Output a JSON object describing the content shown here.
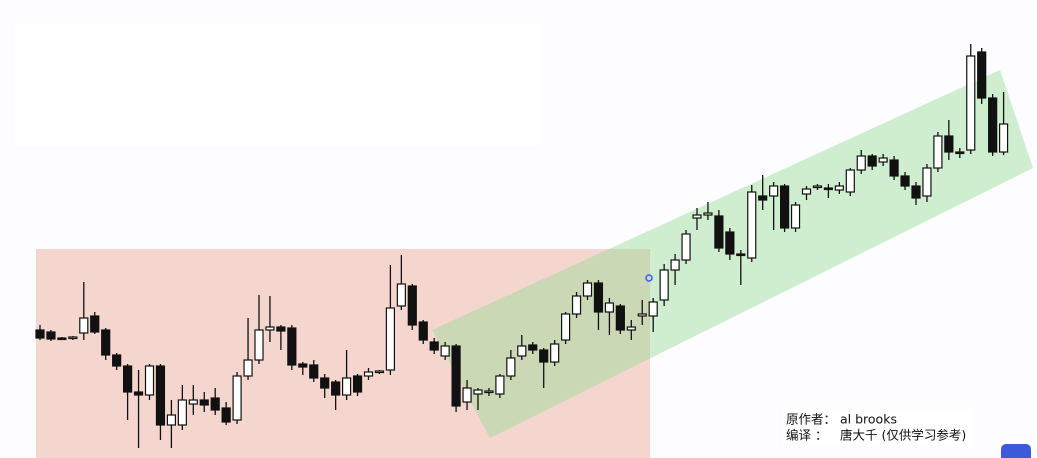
{
  "chart_data": {
    "type": "candlestick",
    "open": [
      130,
      128,
      122,
      122,
      127,
      144,
      130,
      105,
      94,
      68,
      65,
      94,
      35,
      35,
      56,
      60,
      62,
      52,
      40,
      84,
      100,
      130,
      133,
      132,
      96,
      95,
      82,
      78,
      65,
      84,
      84,
      88,
      90,
      154,
      174,
      138,
      118,
      104,
      114,
      58,
      66,
      68,
      66,
      84,
      104,
      115,
      110,
      98,
      120,
      146,
      164,
      177,
      148,
      154,
      130,
      144,
      144,
      160,
      190,
      200,
      242,
      245,
      244,
      228,
      206,
      202,
      264,
      264,
      274,
      232,
      266,
      273,
      272,
      270,
      268,
      290,
      304,
      298,
      300,
      284,
      274,
      264,
      292,
      324,
      308,
      310,
      408,
      362,
      308
    ],
    "high": [
      135,
      130,
      123,
      124,
      178,
      148,
      132,
      107,
      96,
      90,
      96,
      96,
      60,
      75,
      75,
      68,
      72,
      58,
      88,
      142,
      165,
      164,
      135,
      135,
      98,
      100,
      86,
      80,
      110,
      86,
      92,
      90,
      195,
      205,
      176,
      140,
      122,
      118,
      116,
      80,
      72,
      72,
      86,
      110,
      125,
      118,
      112,
      120,
      148,
      168,
      180,
      180,
      162,
      156,
      140,
      160,
      162,
      196,
      206,
      230,
      252,
      258,
      250,
      232,
      210,
      275,
      285,
      278,
      276,
      258,
      274,
      276,
      276,
      278,
      292,
      310,
      306,
      306,
      304,
      288,
      278,
      296,
      328,
      340,
      312,
      416,
      412,
      366,
      368
    ],
    "low": [
      120,
      119,
      120,
      120,
      120,
      126,
      100,
      90,
      40,
      12,
      60,
      20,
      12,
      30,
      45,
      48,
      45,
      35,
      36,
      80,
      96,
      118,
      110,
      90,
      85,
      78,
      62,
      50,
      60,
      64,
      80,
      86,
      85,
      150,
      130,
      116,
      106,
      100,
      48,
      50,
      50,
      64,
      62,
      80,
      100,
      106,
      72,
      94,
      116,
      142,
      160,
      130,
      125,
      126,
      120,
      135,
      128,
      154,
      175,
      196,
      230,
      240,
      208,
      200,
      175,
      198,
      250,
      230,
      228,
      228,
      260,
      270,
      262,
      266,
      264,
      286,
      290,
      294,
      280,
      270,
      255,
      258,
      288,
      300,
      302,
      306,
      356,
      304,
      305
    ],
    "close": [
      122,
      121,
      121,
      123,
      142,
      128,
      105,
      94,
      68,
      65,
      94,
      35,
      45,
      60,
      60,
      55,
      50,
      38,
      84,
      100,
      130,
      133,
      129,
      95,
      93,
      82,
      72,
      65,
      82,
      68,
      88,
      89,
      152,
      176,
      135,
      120,
      110,
      114,
      54,
      72,
      70,
      69,
      84,
      102,
      114,
      110,
      98,
      116,
      146,
      164,
      177,
      148,
      157,
      130,
      133,
      146,
      158,
      190,
      200,
      226,
      245,
      247,
      212,
      206,
      205,
      268,
      260,
      274,
      232,
      255,
      271,
      274,
      271,
      274,
      290,
      304,
      294,
      302,
      284,
      274,
      262,
      292,
      324,
      308,
      307,
      404,
      362,
      308,
      336
    ],
    "up_color": "#ffffff",
    "down_color": "#111111",
    "annotations": [
      [
        "原作者：",
        "al brooks"
      ],
      [
        "编译  ：",
        "唐大千 (仅供学习参考)"
      ]
    ]
  }
}
